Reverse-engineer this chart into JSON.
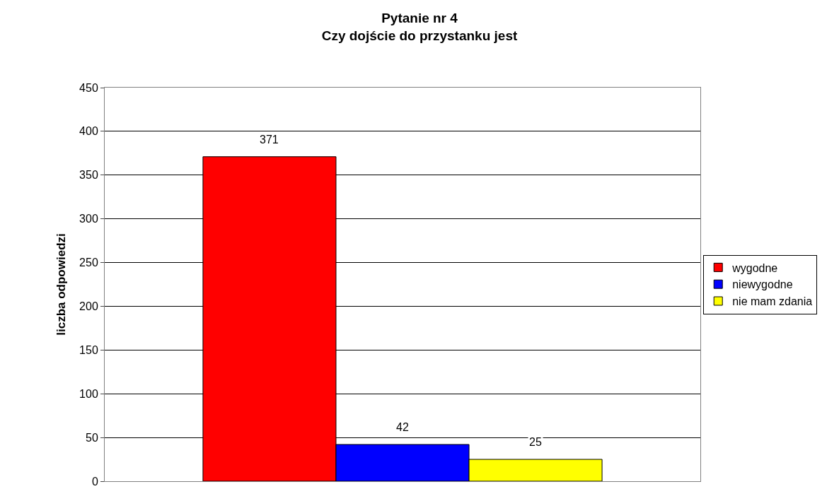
{
  "chart_data": {
    "type": "bar",
    "title": "Pytanie nr 4\nCzy dojście do przystanku jest",
    "ylabel": "liczba odpowiedzi",
    "categories": [
      null
    ],
    "series": [
      {
        "name": "wygodne",
        "color": "#ff0000",
        "values": [
          371
        ]
      },
      {
        "name": "niewygodne",
        "color": "#0000ff",
        "values": [
          42
        ]
      },
      {
        "name": "nie mam zdania",
        "color": "#ffff00",
        "values": [
          25
        ]
      }
    ],
    "ylim": [
      0,
      450
    ],
    "yticks": [
      0,
      50,
      100,
      150,
      200,
      250,
      300,
      350,
      400,
      450
    ],
    "grid": "y",
    "legend": "right",
    "data_labels": true,
    "tick_labels": "y"
  }
}
